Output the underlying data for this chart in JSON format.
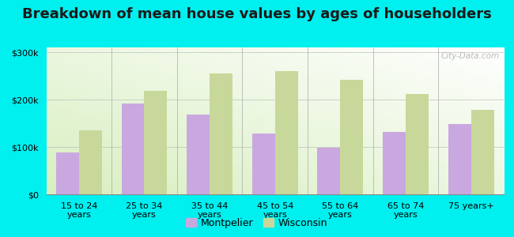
{
  "title": "Breakdown of mean house values by ages of householders",
  "categories": [
    "15 to 24\nyears",
    "25 to 34\nyears",
    "35 to 44\nyears",
    "45 to 54\nyears",
    "55 to 64\nyears",
    "65 to 74\nyears",
    "75 years+"
  ],
  "montpelier": [
    88000,
    192000,
    168000,
    128000,
    98000,
    132000,
    148000
  ],
  "wisconsin": [
    135000,
    218000,
    255000,
    260000,
    242000,
    212000,
    178000
  ],
  "montpelier_color": "#c9a8e0",
  "wisconsin_color": "#c8d89a",
  "background_color": "#00EFEF",
  "ylim": [
    0,
    310000
  ],
  "yticks": [
    0,
    100000,
    200000,
    300000
  ],
  "ytick_labels": [
    "$0",
    "$100k",
    "$200k",
    "$300k"
  ],
  "legend_labels": [
    "Montpelier",
    "Wisconsin"
  ],
  "watermark": "City-Data.com",
  "title_fontsize": 13,
  "tick_fontsize": 8,
  "legend_fontsize": 9,
  "bar_width": 0.35
}
